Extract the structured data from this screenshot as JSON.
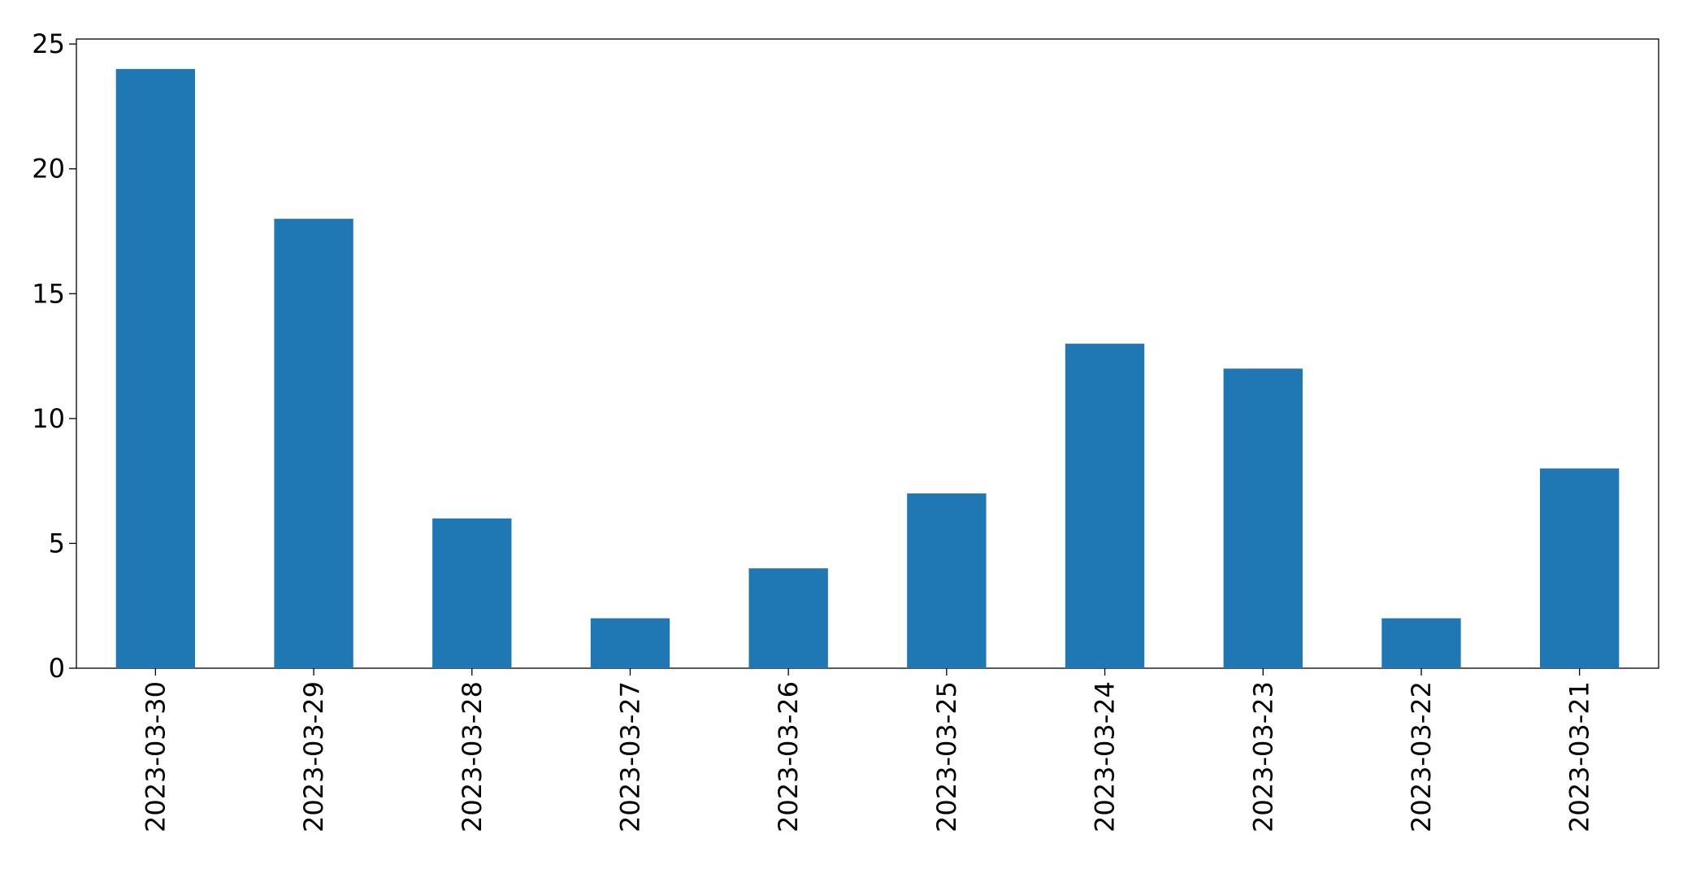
{
  "chart_data": {
    "type": "bar",
    "categories": [
      "2023-03-30",
      "2023-03-29",
      "2023-03-28",
      "2023-03-27",
      "2023-03-26",
      "2023-03-25",
      "2023-03-24",
      "2023-03-23",
      "2023-03-22",
      "2023-03-21"
    ],
    "values": [
      24,
      18,
      6,
      2,
      4,
      7,
      13,
      12,
      2,
      8
    ],
    "color": "#1f77b4",
    "ylim": [
      0,
      25.2
    ],
    "yticks": [
      0,
      5,
      10,
      15,
      20,
      25
    ],
    "grid": false
  }
}
